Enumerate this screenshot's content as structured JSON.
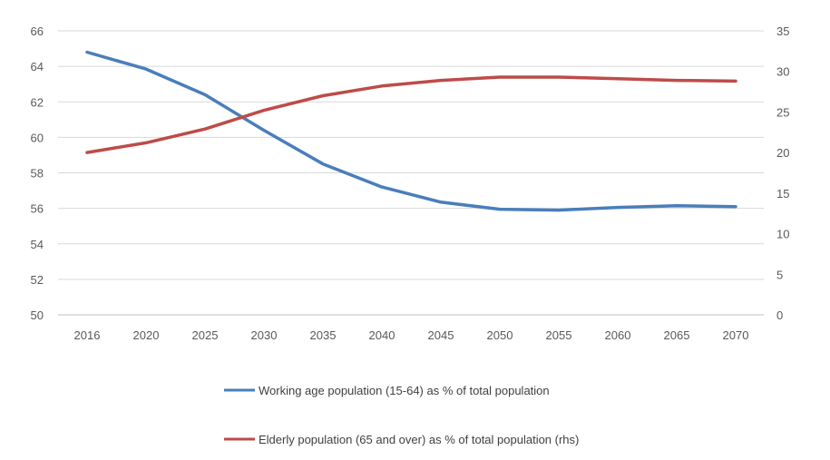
{
  "chart_data": {
    "type": "line",
    "x": [
      "2016",
      "2020",
      "2025",
      "2030",
      "2035",
      "2040",
      "2045",
      "2050",
      "2055",
      "2060",
      "2065",
      "2070"
    ],
    "series": [
      {
        "name": "Working age population (15-64) as % of total population",
        "axis": "left",
        "color": "#4a7ebb",
        "values": [
          64.8,
          63.85,
          62.4,
          60.4,
          58.5,
          57.2,
          56.35,
          55.95,
          55.9,
          56.05,
          56.15,
          56.1
        ]
      },
      {
        "name": "Elderly population (65 and over) as % of total population (rhs)",
        "axis": "right",
        "color": "#be4b48",
        "values": [
          20.0,
          21.2,
          22.9,
          25.2,
          27.0,
          28.2,
          28.9,
          29.3,
          29.3,
          29.1,
          28.9,
          28.8
        ]
      }
    ],
    "yleft": {
      "min": 50,
      "max": 66,
      "ticks": [
        "50",
        "52",
        "54",
        "56",
        "58",
        "60",
        "62",
        "64",
        "66"
      ]
    },
    "yright": {
      "min": 0,
      "max": 35,
      "ticks": [
        "0",
        "5",
        "10",
        "15",
        "20",
        "25",
        "30",
        "35"
      ]
    },
    "grid": true,
    "legend_position": "bottom"
  }
}
